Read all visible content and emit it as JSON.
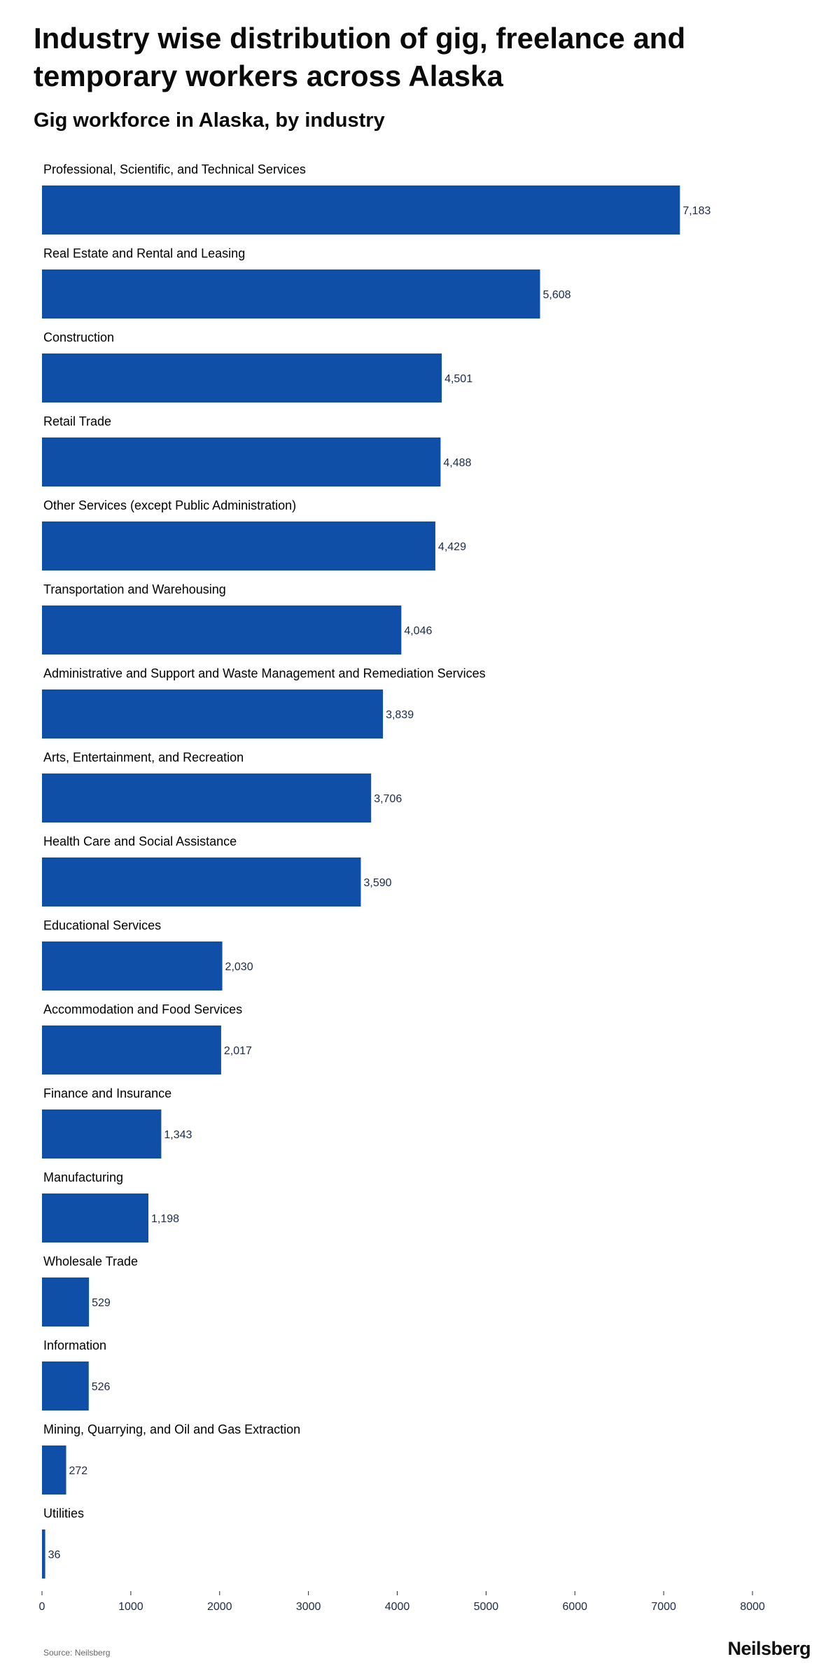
{
  "title": "Industry wise distribution of gig, freelance and temporary workers across Alaska",
  "subtitle": "Gig workforce in Alaska, by industry",
  "source": "Source: Neilsberg",
  "brand": "Neilsberg",
  "colors": {
    "bar": "#0f4fa8",
    "value_label": "#1b2a4a",
    "category_label": "#000000",
    "axis": "#1b2a4a"
  },
  "chart_data": {
    "type": "bar",
    "orientation": "horizontal",
    "title": "Gig workforce in Alaska, by industry",
    "xlabel": "",
    "ylabel": "",
    "xlim": [
      0,
      8000
    ],
    "xticks": [
      0,
      1000,
      2000,
      3000,
      4000,
      5000,
      6000,
      7000,
      8000
    ],
    "grid": false,
    "categories": [
      "Professional, Scientific, and Technical Services",
      "Real Estate and Rental and Leasing",
      "Construction",
      "Retail Trade",
      "Other Services (except Public Administration)",
      "Transportation and Warehousing",
      "Administrative and Support and Waste Management and Remediation Services",
      "Arts, Entertainment, and Recreation",
      "Health Care and Social Assistance",
      "Educational Services",
      "Accommodation and Food Services",
      "Finance and Insurance",
      "Manufacturing",
      "Wholesale Trade",
      "Information",
      "Mining, Quarrying, and Oil and Gas Extraction",
      "Utilities"
    ],
    "values": [
      7183,
      5608,
      4501,
      4488,
      4429,
      4046,
      3839,
      3706,
      3590,
      2030,
      2017,
      1343,
      1198,
      529,
      526,
      272,
      36
    ],
    "value_labels": [
      "7,183",
      "5,608",
      "4,501",
      "4,488",
      "4,429",
      "4,046",
      "3,839",
      "3,706",
      "3,590",
      "2,030",
      "2,017",
      "1,343",
      "1,198",
      "529",
      "526",
      "272",
      "36"
    ]
  }
}
